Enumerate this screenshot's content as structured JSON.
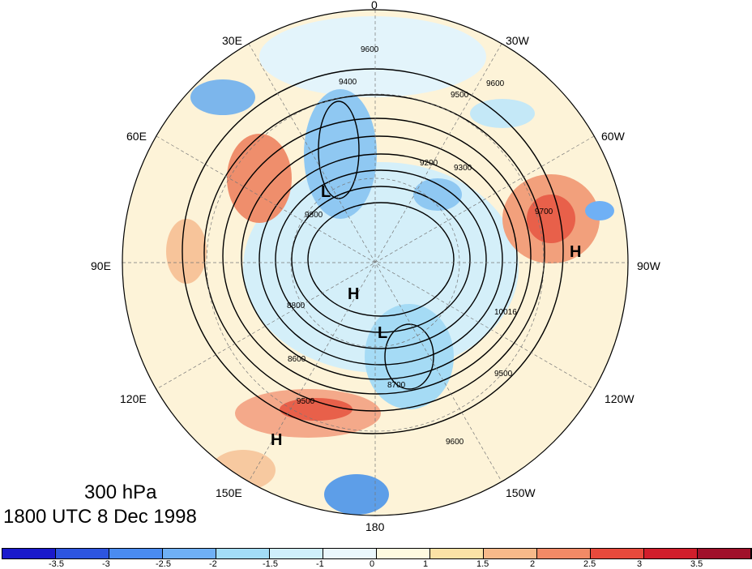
{
  "map": {
    "level": "300 hPa",
    "time": "1800 UTC 8 Dec 1998",
    "lon_labels": [
      "0",
      "30W",
      "60W",
      "90W",
      "120W",
      "150W",
      "180",
      "150E",
      "120E",
      "90E",
      "60E",
      "30E"
    ],
    "contour_labels": [
      "9600",
      "9400",
      "9500",
      "9300",
      "9200",
      "9700",
      "9800",
      "8800",
      "8700",
      "8600",
      "9900",
      "10016"
    ],
    "centers": [
      {
        "label": "L",
        "name": "low-europe"
      },
      {
        "label": "H",
        "name": "high-atlantic"
      },
      {
        "label": "H",
        "name": "high-arctic"
      },
      {
        "label": "L",
        "name": "low-pacific-arctic"
      },
      {
        "label": "H",
        "name": "high-asia"
      }
    ]
  },
  "colorbar": {
    "ticks": [
      "-3.5",
      "-3",
      "-2.5",
      "-2",
      "-1.5",
      "-1",
      "0",
      "1",
      "1.5",
      "2",
      "2.5",
      "3",
      "3.5"
    ],
    "colors": [
      "#1a1acc",
      "#2d55e0",
      "#4a8bf0",
      "#6fb0f5",
      "#a3ddf7",
      "#cfeffb",
      "#eaf7fc",
      "#fefae0",
      "#fbe2a6",
      "#f7b98a",
      "#f28a66",
      "#e84a3c",
      "#d11e2c",
      "#a0102a"
    ]
  }
}
